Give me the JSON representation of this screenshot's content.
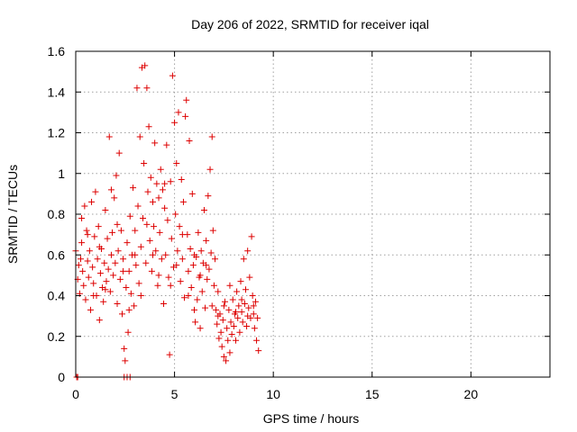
{
  "chart_data": {
    "type": "scatter",
    "title": "Day 206 of 2022, SRMTID for receiver iqal",
    "xlabel": "GPS time / hours",
    "ylabel": "SRMTID / TECUs",
    "xlim": [
      0,
      24
    ],
    "ylim": [
      0,
      1.6
    ],
    "xticks": [
      0,
      5,
      10,
      15,
      20
    ],
    "yticks": [
      0,
      0.2,
      0.4,
      0.6,
      0.8,
      1,
      1.2,
      1.4,
      1.6
    ],
    "xtick_labels": [
      "0",
      "5",
      "10",
      "15",
      "20"
    ],
    "ytick_labels": [
      "0",
      "0.2",
      "0.4",
      "0.6",
      "0.8",
      "1",
      "1.2",
      "1.4",
      "1.6"
    ],
    "grid": true,
    "marker": "plus",
    "marker_color": "#dd0000",
    "legend": "none",
    "series": [
      {
        "name": "SRMTID",
        "points": [
          [
            0.05,
            0.0
          ],
          [
            0.1,
            0.0
          ],
          [
            2.45,
            0.0
          ],
          [
            2.6,
            0.0
          ],
          [
            2.75,
            0.0
          ],
          [
            0.0,
            0.62
          ],
          [
            0.1,
            0.48
          ],
          [
            0.15,
            0.55
          ],
          [
            0.2,
            0.41
          ],
          [
            0.25,
            0.58
          ],
          [
            0.3,
            0.66
          ],
          [
            0.35,
            0.52
          ],
          [
            0.4,
            0.45
          ],
          [
            0.45,
            0.84
          ],
          [
            0.5,
            0.38
          ],
          [
            0.55,
            0.72
          ],
          [
            0.6,
            0.57
          ],
          [
            0.65,
            0.49
          ],
          [
            0.7,
            0.62
          ],
          [
            0.75,
            0.33
          ],
          [
            0.8,
            0.86
          ],
          [
            0.85,
            0.54
          ],
          [
            0.9,
            0.46
          ],
          [
            0.95,
            0.69
          ],
          [
            1.0,
            0.91
          ],
          [
            1.05,
            0.4
          ],
          [
            1.1,
            0.58
          ],
          [
            1.15,
            0.74
          ],
          [
            1.2,
            0.28
          ],
          [
            1.25,
            0.51
          ],
          [
            1.3,
            0.63
          ],
          [
            1.35,
            0.44
          ],
          [
            1.4,
            0.37
          ],
          [
            1.45,
            0.56
          ],
          [
            1.5,
            0.82
          ],
          [
            1.55,
            0.47
          ],
          [
            1.6,
            0.68
          ],
          [
            1.65,
            0.53
          ],
          [
            1.7,
            1.18
          ],
          [
            1.75,
            0.42
          ],
          [
            1.8,
            0.6
          ],
          [
            1.85,
            0.71
          ],
          [
            1.9,
            0.5
          ],
          [
            1.95,
            0.88
          ],
          [
            2.0,
            0.56
          ],
          [
            2.05,
            0.99
          ],
          [
            2.1,
            0.36
          ],
          [
            2.15,
            0.62
          ],
          [
            2.2,
            1.1
          ],
          [
            2.25,
            0.48
          ],
          [
            2.3,
            0.72
          ],
          [
            2.35,
            0.31
          ],
          [
            2.4,
            0.58
          ],
          [
            2.45,
            0.14
          ],
          [
            2.5,
            0.08
          ],
          [
            2.55,
            0.44
          ],
          [
            2.6,
            0.66
          ],
          [
            2.65,
            0.22
          ],
          [
            2.7,
            0.52
          ],
          [
            2.75,
            0.79
          ],
          [
            2.8,
            0.41
          ],
          [
            2.85,
            0.6
          ],
          [
            2.9,
            0.93
          ],
          [
            2.95,
            0.35
          ],
          [
            3.0,
            0.72
          ],
          [
            3.05,
            0.55
          ],
          [
            3.1,
            1.42
          ],
          [
            3.15,
            0.84
          ],
          [
            3.2,
            0.46
          ],
          [
            3.25,
            1.18
          ],
          [
            3.3,
            0.64
          ],
          [
            3.35,
            1.52
          ],
          [
            3.4,
            0.78
          ],
          [
            3.45,
            1.05
          ],
          [
            3.5,
            1.53
          ],
          [
            3.55,
            0.56
          ],
          [
            3.6,
            1.42
          ],
          [
            3.65,
            0.91
          ],
          [
            3.7,
            1.23
          ],
          [
            3.75,
            0.67
          ],
          [
            3.8,
            0.98
          ],
          [
            3.85,
            0.52
          ],
          [
            3.9,
            0.86
          ],
          [
            3.95,
            0.74
          ],
          [
            4.0,
            1.15
          ],
          [
            4.05,
            0.62
          ],
          [
            4.1,
            0.95
          ],
          [
            4.15,
            0.45
          ],
          [
            4.2,
            0.88
          ],
          [
            4.25,
            0.71
          ],
          [
            4.3,
            1.02
          ],
          [
            4.35,
            0.58
          ],
          [
            4.4,
            0.92
          ],
          [
            4.45,
            0.36
          ],
          [
            4.5,
            0.83
          ],
          [
            4.55,
            0.6
          ],
          [
            4.6,
            1.14
          ],
          [
            4.65,
            0.77
          ],
          [
            4.7,
            0.49
          ],
          [
            4.75,
            0.11
          ],
          [
            4.8,
            0.96
          ],
          [
            4.85,
            0.68
          ],
          [
            4.9,
            1.48
          ],
          [
            4.95,
            0.54
          ],
          [
            5.0,
            1.25
          ],
          [
            5.05,
            0.8
          ],
          [
            5.1,
            1.05
          ],
          [
            5.15,
            0.62
          ],
          [
            5.2,
            1.3
          ],
          [
            5.25,
            0.74
          ],
          [
            5.3,
            0.47
          ],
          [
            5.35,
            0.97
          ],
          [
            5.4,
            0.58
          ],
          [
            5.45,
            0.86
          ],
          [
            5.5,
            0.39
          ],
          [
            5.55,
            1.28
          ],
          [
            5.6,
            1.36
          ],
          [
            5.65,
            0.7
          ],
          [
            5.7,
            0.52
          ],
          [
            5.75,
            1.16
          ],
          [
            5.8,
            0.63
          ],
          [
            5.85,
            0.44
          ],
          [
            5.9,
            0.9
          ],
          [
            5.95,
            0.55
          ],
          [
            6.0,
            0.33
          ],
          [
            6.05,
            0.27
          ],
          [
            6.1,
            0.59
          ],
          [
            6.15,
            0.38
          ],
          [
            6.2,
            0.71
          ],
          [
            6.25,
            0.49
          ],
          [
            6.3,
            0.24
          ],
          [
            6.35,
            0.62
          ],
          [
            6.4,
            0.42
          ],
          [
            6.45,
            0.56
          ],
          [
            6.5,
            0.82
          ],
          [
            6.55,
            0.34
          ],
          [
            6.6,
            0.67
          ],
          [
            6.65,
            0.48
          ],
          [
            6.7,
            0.89
          ],
          [
            6.75,
            0.53
          ],
          [
            6.8,
            1.02
          ],
          [
            6.85,
            0.61
          ],
          [
            6.9,
            1.18
          ],
          [
            6.95,
            0.72
          ],
          [
            7.0,
            0.45
          ],
          [
            7.05,
            0.58
          ],
          [
            7.1,
            0.33
          ],
          [
            7.15,
            0.26
          ],
          [
            7.2,
            0.42
          ],
          [
            7.25,
            0.19
          ],
          [
            7.3,
            0.31
          ],
          [
            7.35,
            0.22
          ],
          [
            7.4,
            0.15
          ],
          [
            7.45,
            0.28
          ],
          [
            7.5,
            0.1
          ],
          [
            7.55,
            0.37
          ],
          [
            7.6,
            0.08
          ],
          [
            7.65,
            0.24
          ],
          [
            7.7,
            0.18
          ],
          [
            7.75,
            0.33
          ],
          [
            7.8,
            0.12
          ],
          [
            7.85,
            0.27
          ],
          [
            7.9,
            0.21
          ],
          [
            7.95,
            0.38
          ],
          [
            8.0,
            0.25
          ],
          [
            8.05,
            0.31
          ],
          [
            8.1,
            0.18
          ],
          [
            8.15,
            0.42
          ],
          [
            8.2,
            0.29
          ],
          [
            8.25,
            0.35
          ],
          [
            8.3,
            0.22
          ],
          [
            8.35,
            0.47
          ],
          [
            8.4,
            0.32
          ],
          [
            8.45,
            0.27
          ],
          [
            8.5,
            0.58
          ],
          [
            8.55,
            0.36
          ],
          [
            8.6,
            0.43
          ],
          [
            8.65,
            0.25
          ],
          [
            8.7,
            0.62
          ],
          [
            8.75,
            0.34
          ],
          [
            8.8,
            0.49
          ],
          [
            8.85,
            0.29
          ],
          [
            8.9,
            0.69
          ],
          [
            8.95,
            0.4
          ],
          [
            9.0,
            0.31
          ],
          [
            9.05,
            0.24
          ],
          [
            9.1,
            0.37
          ],
          [
            9.15,
            0.18
          ],
          [
            9.2,
            0.29
          ],
          [
            9.25,
            0.13
          ],
          [
            0.3,
            0.78
          ],
          [
            0.6,
            0.7
          ],
          [
            0.9,
            0.4
          ],
          [
            1.2,
            0.64
          ],
          [
            1.5,
            0.43
          ],
          [
            1.8,
            0.92
          ],
          [
            2.1,
            0.75
          ],
          [
            2.4,
            0.52
          ],
          [
            2.7,
            0.33
          ],
          [
            3.0,
            0.6
          ],
          [
            3.3,
            0.4
          ],
          [
            3.6,
            0.75
          ],
          [
            3.9,
            0.6
          ],
          [
            4.2,
            0.5
          ],
          [
            4.5,
            0.95
          ],
          [
            4.8,
            0.45
          ],
          [
            5.1,
            0.55
          ],
          [
            5.4,
            0.7
          ],
          [
            5.7,
            0.4
          ],
          [
            6.0,
            0.6
          ],
          [
            6.3,
            0.5
          ],
          [
            6.6,
            0.55
          ],
          [
            6.9,
            0.35
          ],
          [
            7.2,
            0.3
          ],
          [
            7.5,
            0.35
          ],
          [
            7.8,
            0.45
          ],
          [
            8.1,
            0.32
          ],
          [
            8.4,
            0.38
          ],
          [
            8.7,
            0.3
          ],
          [
            9.0,
            0.35
          ]
        ]
      }
    ]
  }
}
